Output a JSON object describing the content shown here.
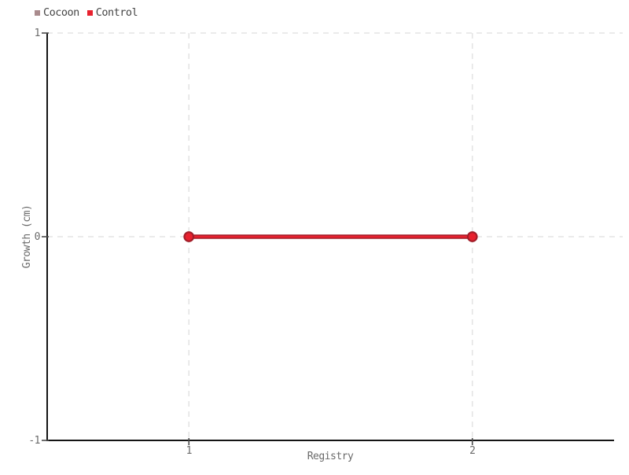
{
  "chart_data": {
    "type": "line",
    "title": "",
    "xlabel": "Registry",
    "ylabel": "Growth (cm)",
    "xlim": [
      0.5,
      2.5
    ],
    "ylim": [
      -1,
      1
    ],
    "xticks": [
      {
        "value": 1,
        "label": "1"
      },
      {
        "value": 2,
        "label": "2"
      }
    ],
    "yticks": [
      {
        "value": 1,
        "label": "1"
      },
      {
        "value": 0,
        "label": "0"
      },
      {
        "value": -1,
        "label": "-1"
      }
    ],
    "grid": "dashed",
    "legend_position": "top-left",
    "series": [
      {
        "name": "Cocoon",
        "color": "#a98b8d",
        "edge_color": "#8d7376",
        "points": []
      },
      {
        "name": "Control",
        "color": "#e8212e",
        "edge_color": "#a21e29",
        "points": [
          [
            1,
            0
          ],
          [
            2,
            0
          ]
        ]
      }
    ]
  },
  "colors": {
    "background": "#ffffff",
    "axis": "#141414",
    "gridline": "#e4e4e4",
    "tick_text": "#6a6a6a",
    "legend_text": "#454545"
  }
}
